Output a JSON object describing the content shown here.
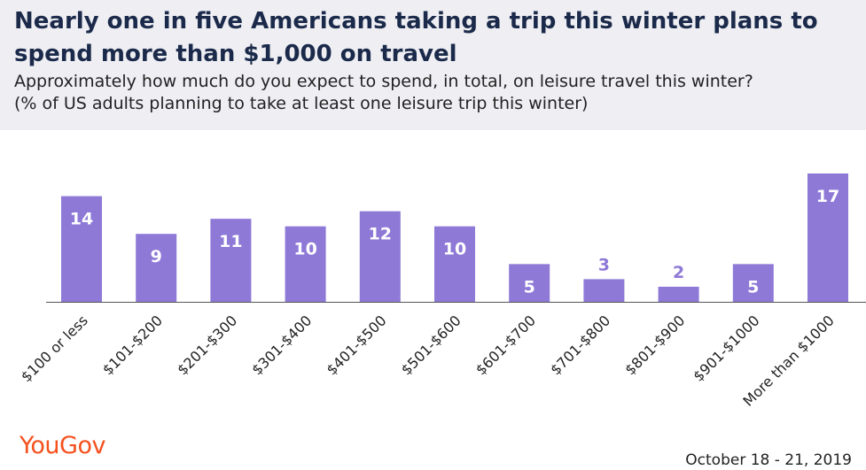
{
  "title": "Nearly one in five Americans taking a trip this winter plans to spend more than $1,000 on travel",
  "subtitle_line1": "Approximately how much do you expect to spend, in total, on leisure travel this winter?",
  "subtitle_line2": "(% of US adults planning to take at least one leisure trip this winter)",
  "logo_text": "YouGov",
  "date": "October 18 - 21, 2019",
  "colors": {
    "bar": "#8e79d7",
    "label_inside": "#ffffff",
    "label_outside": "#8e79d7",
    "axis": "#555555",
    "header_bg": "#eeeef3",
    "logo": "#f4511e"
  },
  "chart_data": {
    "type": "bar",
    "categories": [
      "$100 or less",
      "$101-$200",
      "$201-$300",
      "$301-$400",
      "$401-$500",
      "$501-$600",
      "$601-$700",
      "$701-$800",
      "$801-$900",
      "$901-$1000",
      "More than $1000"
    ],
    "values": [
      14,
      9,
      11,
      10,
      12,
      10,
      5,
      3,
      2,
      5,
      17
    ],
    "ylim": [
      0,
      17
    ],
    "grid": false,
    "legend": "none"
  }
}
